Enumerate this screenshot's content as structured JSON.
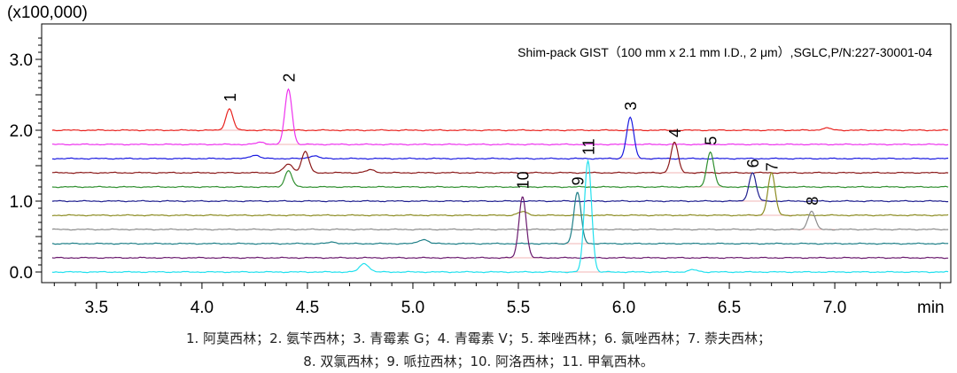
{
  "chart_data": {
    "type": "line",
    "y_unit_label": "(x100,000)",
    "x_unit_label": "min",
    "column_label": "Shim-pack GIST（100 mm x 2.1 mm I.D., 2  μm）,SGLC,P/N:227-30001-04",
    "xlim": [
      3.24,
      7.55
    ],
    "ylim": [
      -0.15,
      3.5
    ],
    "x_ticks": [
      3.5,
      4.0,
      4.5,
      5.0,
      5.5,
      6.0,
      6.5,
      7.0
    ],
    "x_tick_labels": [
      "3.5",
      "4.0",
      "4.5",
      "5.0",
      "5.5",
      "6.0",
      "6.5",
      "7.0"
    ],
    "y_ticks": [
      0.0,
      1.0,
      2.0,
      3.0
    ],
    "y_tick_labels": [
      "0.0",
      "1.0",
      "2.0",
      "3.0"
    ],
    "series": [
      {
        "color": "#e8231f",
        "baseline": 2.0,
        "peaks": [
          {
            "rt": 4.13,
            "height": 0.3,
            "label": "1"
          },
          {
            "rt": 6.96,
            "height": 0.03
          }
        ]
      },
      {
        "color": "#ee33ee",
        "baseline": 1.8,
        "peaks": [
          {
            "rt": 4.41,
            "height": 0.78,
            "label": "2"
          },
          {
            "rt": 4.28,
            "height": 0.03
          }
        ]
      },
      {
        "color": "#1a1ae0",
        "baseline": 1.6,
        "peaks": [
          {
            "rt": 6.03,
            "height": 0.58,
            "label": "3"
          },
          {
            "rt": 4.25,
            "height": 0.05
          },
          {
            "rt": 4.53,
            "height": 0.04
          }
        ]
      },
      {
        "color": "#8b1a1a",
        "baseline": 1.4,
        "peaks": [
          {
            "rt": 6.24,
            "height": 0.43,
            "label": "4"
          },
          {
            "rt": 4.49,
            "height": 0.3
          },
          {
            "rt": 4.41,
            "height": 0.12
          },
          {
            "rt": 4.8,
            "height": 0.04
          }
        ]
      },
      {
        "color": "#2f8f2f",
        "baseline": 1.2,
        "peaks": [
          {
            "rt": 6.41,
            "height": 0.49,
            "label": "5"
          },
          {
            "rt": 4.41,
            "height": 0.23
          }
        ]
      },
      {
        "color": "#1f1f8f",
        "baseline": 1.0,
        "peaks": [
          {
            "rt": 6.61,
            "height": 0.4,
            "label": "6"
          }
        ]
      },
      {
        "color": "#8c8c22",
        "baseline": 0.8,
        "peaks": [
          {
            "rt": 6.7,
            "height": 0.6,
            "label": "7"
          },
          {
            "rt": 5.52,
            "height": 0.05
          }
        ]
      },
      {
        "color": "#8c8c8c",
        "baseline": 0.6,
        "peaks": [
          {
            "rt": 6.89,
            "height": 0.26,
            "label": "8"
          }
        ]
      },
      {
        "color": "#1e7f87",
        "baseline": 0.4,
        "peaks": [
          {
            "rt": 5.78,
            "height": 0.72,
            "label": "9"
          },
          {
            "rt": 5.05,
            "height": 0.06
          },
          {
            "rt": 4.62,
            "height": 0.02
          }
        ]
      },
      {
        "color": "#6a1a6e",
        "baseline": 0.2,
        "peaks": [
          {
            "rt": 5.52,
            "height": 0.87,
            "label": "10"
          }
        ]
      },
      {
        "color": "#22e0ee",
        "baseline": 0.0,
        "peaks": [
          {
            "rt": 5.83,
            "height": 1.57,
            "label": "11"
          },
          {
            "rt": 4.77,
            "height": 0.12
          },
          {
            "rt": 6.33,
            "height": 0.03
          }
        ]
      }
    ],
    "peak_label_offsets": {
      "1": 0.1,
      "2": 0.1,
      "3": 0.1,
      "4": 0.07,
      "5": 0.1,
      "6": 0.07,
      "7": 0.02,
      "8": 0.08,
      "9": 0.1,
      "10": 0.1,
      "11": 0.08
    }
  },
  "caption": {
    "line1": "1. 阿莫西林；2. 氨苄西林；3. 青霉素 G；4. 青霉素 V；5. 苯唑西林；6. 氯唑西林；7. 萘夫西林；",
    "line2": "8. 双氯西林；9. 哌拉西林；10. 阿洛西林；11. 甲氧西林。"
  }
}
